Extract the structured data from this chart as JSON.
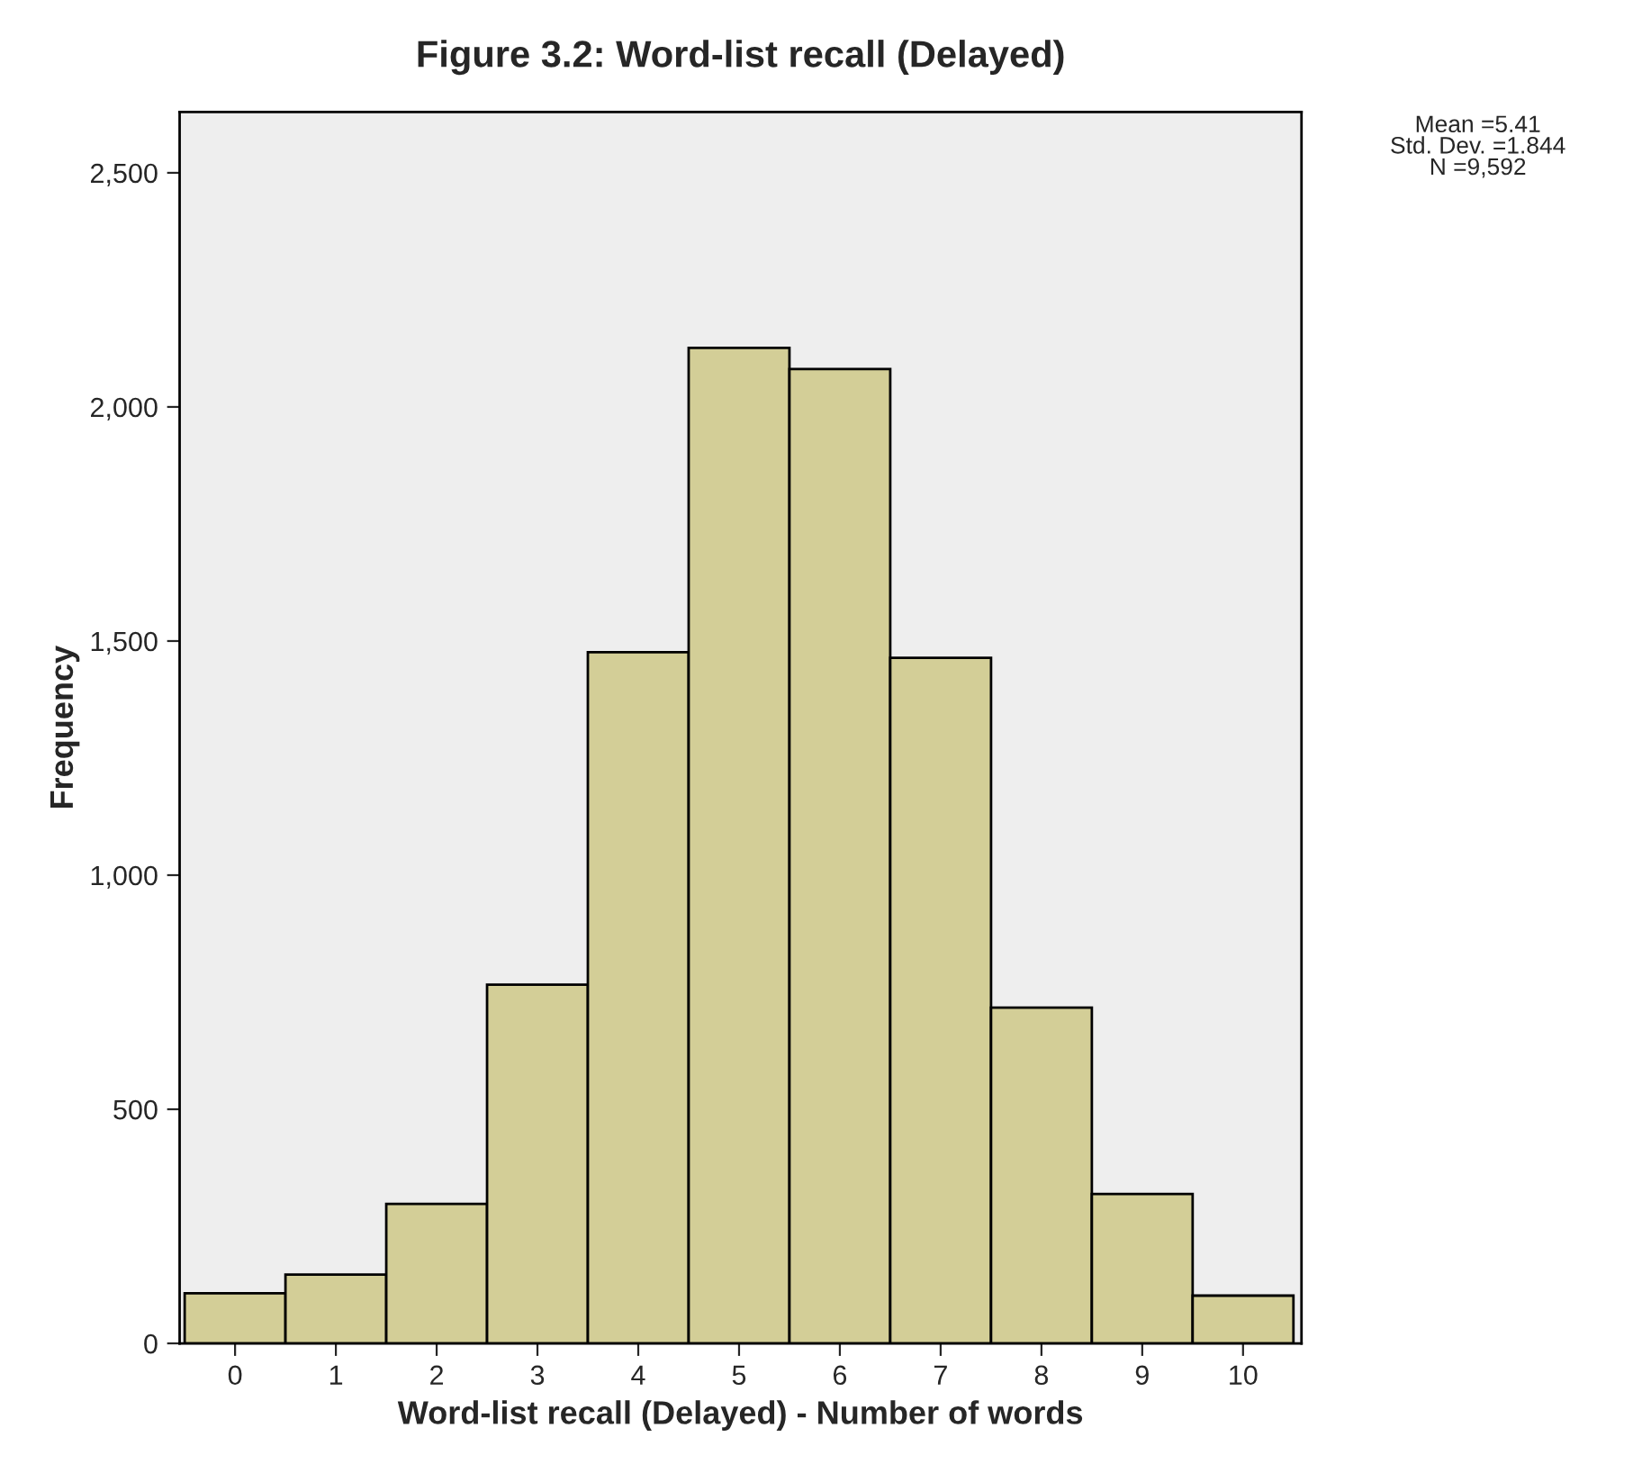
{
  "chart_data": {
    "type": "histogram",
    "title": "Figure 3.2: Word-list recall (Delayed)",
    "xlabel": "Word-list recall (Delayed) - Number of words",
    "ylabel": "Frequency",
    "bins": [
      -0.5,
      0.5,
      1.5,
      2.5,
      3.5,
      4.5,
      5.5,
      6.5,
      7.5,
      8.5,
      9.5,
      10.5
    ],
    "values": [
      107,
      147,
      298,
      766,
      1476,
      2126,
      2081,
      1464,
      717,
      319,
      102
    ],
    "color": "#d3ce97",
    "xlim": [
      -0.55,
      10.58
    ],
    "ylim": [
      0,
      2630
    ],
    "xticks": [
      0,
      1,
      2,
      3,
      4,
      5,
      6,
      7,
      8,
      9,
      10
    ],
    "yticks": [
      0,
      {
        "value": 500,
        "label": "500"
      },
      {
        "value": 1000,
        "label": "1,000"
      },
      {
        "value": 1500,
        "label": "1,500"
      },
      {
        "value": 2000,
        "label": "2,000"
      },
      {
        "value": 2500,
        "label": "2,500"
      }
    ],
    "grid": false,
    "legend": false,
    "annotations": [
      "Mean =5.41\nStd. Dev. =1.844\nN =9,592"
    ]
  }
}
